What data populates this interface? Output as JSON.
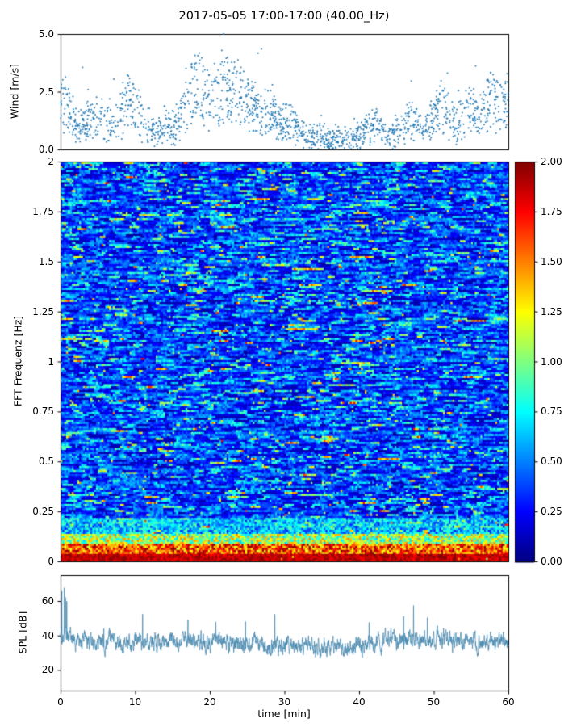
{
  "title": "2017-05-05 17:00-17:00 (40.00_Hz)",
  "x_axis": {
    "label": "time [min]",
    "ticks": [
      0,
      10,
      20,
      30,
      40,
      50,
      60
    ],
    "tick_labels": [
      "0",
      "10",
      "20",
      "30",
      "40",
      "50",
      "60"
    ],
    "range": [
      0,
      60
    ]
  },
  "chart_data": [
    {
      "id": "wind",
      "type": "scatter",
      "ylabel": "Wind [m/s]",
      "ylim": [
        0,
        5
      ],
      "yticks": [
        0,
        2.5,
        5
      ],
      "ytick_labels": [
        "0.0",
        "2.5",
        "5.0"
      ],
      "marker_color": "#1f77b4",
      "n_points": 1700,
      "spread": 0.75,
      "mean_wind_by_minute": [
        2.4,
        2.2,
        1.3,
        1.1,
        1.5,
        1.7,
        1.3,
        1.2,
        1.8,
        2.6,
        2.2,
        1.4,
        1.1,
        0.9,
        1.3,
        1.0,
        1.7,
        2.8,
        3.2,
        2.9,
        2.6,
        3.0,
        3.3,
        2.9,
        2.7,
        2.4,
        2.1,
        1.7,
        2.0,
        1.6,
        1.2,
        1.5,
        0.9,
        0.7,
        0.6,
        0.7,
        0.5,
        0.5,
        0.6,
        0.5,
        0.7,
        1.0,
        1.3,
        0.9,
        0.7,
        0.9,
        1.2,
        1.6,
        1.4,
        1.1,
        1.8,
        2.3,
        1.6,
        1.2,
        1.6,
        2.1,
        1.5,
        2.2,
        2.6,
        2.1,
        2.3
      ],
      "description": "Dense scatter of 1-s wind speed samples, 0-5 m/s; calm period around minutes 33-42, gusty clusters near minutes 17-27 and 50-58"
    },
    {
      "id": "fft-spectrogram",
      "type": "heatmap",
      "ylabel": "FFT Frequenz [Hz]",
      "ylim": [
        0,
        2
      ],
      "yticks": [
        0,
        0.25,
        0.5,
        0.75,
        1,
        1.25,
        1.5,
        1.75,
        2
      ],
      "ytick_labels": [
        "0",
        "0.25",
        "0.5",
        "0.75",
        "1",
        "1.25",
        "1.5",
        "1.75",
        "2"
      ],
      "colormap": "jet",
      "clim": [
        0,
        2
      ],
      "grid": {
        "nx": 240,
        "ny": 200
      },
      "low_freq_hot_band_hz": 0.14,
      "description": "FFT spectrogram over 60 min; mostly dark/medium blue noise (values 0.1-0.6) with short horizontal cyan-green streaks; strong red/orange band (values 1.2-2.0) below ~0.1 Hz and a yellow-green band near 0.1-0.2 Hz"
    },
    {
      "id": "spl",
      "type": "line",
      "ylabel": "SPL [dB]",
      "ylim": [
        8,
        75
      ],
      "yticks": [
        20,
        40,
        60
      ],
      "ytick_labels": [
        "20",
        "40",
        "60"
      ],
      "line_color": "#4a8ab0",
      "n_points": 2400,
      "noise_db": 4,
      "max_spike_db": 72,
      "mean_spl_by_minute": [
        40,
        38,
        38,
        37,
        36,
        36,
        37,
        36,
        35,
        36,
        36,
        35,
        36,
        37,
        36,
        35,
        36,
        36,
        37,
        36,
        36,
        37,
        36,
        36,
        35,
        35,
        36,
        35,
        34,
        34,
        34,
        35,
        34,
        33,
        34,
        33,
        33,
        34,
        33,
        33,
        33,
        34,
        35,
        37,
        38,
        38,
        37,
        38,
        38,
        37,
        38,
        39,
        38,
        36,
        36,
        37,
        36,
        37,
        38,
        37,
        37
      ],
      "description": "Noisy SPL trace fluctuating around 30-45 dB with an initial spike near 70 dB at minute ~0.5 and occasional spikes to ~55 dB"
    }
  ],
  "colorbar": {
    "colormap": "jet",
    "range": [
      0,
      2
    ],
    "ticks": [
      0,
      0.25,
      0.5,
      0.75,
      1,
      1.25,
      1.5,
      1.75,
      2
    ],
    "tick_labels": [
      "0.00",
      "0.25",
      "0.50",
      "0.75",
      "1.00",
      "1.25",
      "1.50",
      "1.75",
      "2.00"
    ]
  }
}
